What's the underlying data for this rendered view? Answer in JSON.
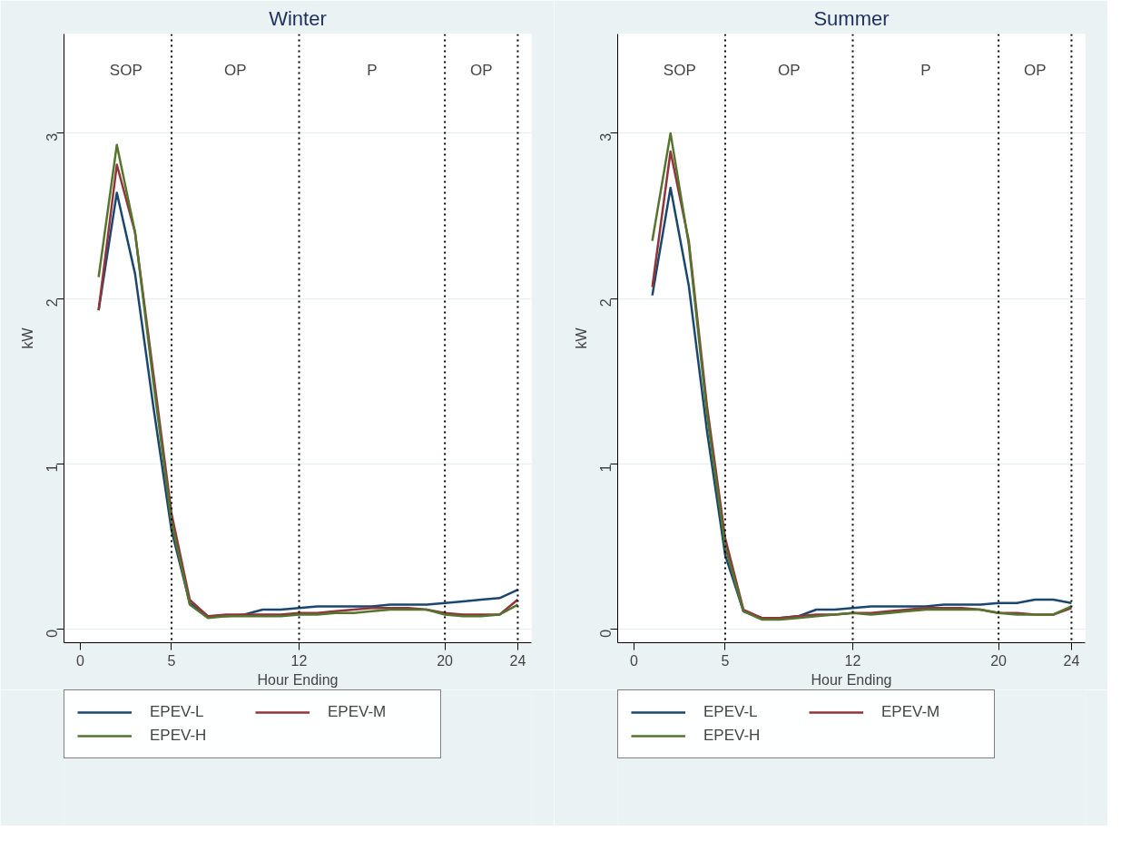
{
  "chart_data": [
    {
      "type": "line",
      "title": "Winter",
      "xlabel": "Hour Ending",
      "ylabel": "kW",
      "x": [
        1,
        2,
        3,
        4,
        5,
        6,
        7,
        8,
        9,
        10,
        11,
        12,
        13,
        14,
        15,
        16,
        17,
        18,
        19,
        20,
        21,
        22,
        23,
        24
      ],
      "series": [
        {
          "name": "EPEV-L",
          "color": "#1a476f",
          "values": [
            1.93,
            2.64,
            2.15,
            1.35,
            0.6,
            0.16,
            0.08,
            0.08,
            0.09,
            0.12,
            0.12,
            0.13,
            0.14,
            0.14,
            0.14,
            0.14,
            0.15,
            0.15,
            0.15,
            0.16,
            0.17,
            0.18,
            0.19,
            0.24
          ]
        },
        {
          "name": "EPEV-M",
          "color": "#90353b",
          "values": [
            1.93,
            2.81,
            2.4,
            1.55,
            0.7,
            0.18,
            0.08,
            0.09,
            0.09,
            0.09,
            0.09,
            0.1,
            0.1,
            0.11,
            0.12,
            0.13,
            0.13,
            0.13,
            0.12,
            0.1,
            0.09,
            0.09,
            0.09,
            0.18
          ]
        },
        {
          "name": "EPEV-H",
          "color": "#55752f",
          "values": [
            2.13,
            2.93,
            2.4,
            1.5,
            0.65,
            0.15,
            0.07,
            0.08,
            0.08,
            0.08,
            0.08,
            0.09,
            0.09,
            0.1,
            0.1,
            0.11,
            0.12,
            0.12,
            0.12,
            0.09,
            0.08,
            0.08,
            0.09,
            0.15
          ]
        }
      ],
      "xlim": [
        -0.9,
        24.75
      ],
      "ylim": [
        -0.08,
        3.6
      ],
      "xticks": [
        0,
        5,
        12,
        20,
        24
      ],
      "yticks": [
        0,
        1,
        2,
        3
      ],
      "grid": "y",
      "legend": "bottom",
      "ref_lines": [
        {
          "axis": "x",
          "value": 5,
          "color": "#000000",
          "line_style": "dotted"
        },
        {
          "axis": "x",
          "value": 12,
          "color": "#000000",
          "line_style": "dotted"
        },
        {
          "axis": "x",
          "value": 20,
          "color": "#000000",
          "line_style": "dotted"
        },
        {
          "axis": "x",
          "value": 24,
          "color": "#000000",
          "line_style": "dotted"
        }
      ],
      "annotations": [
        "SOP",
        "OP",
        "P",
        "OP"
      ]
    },
    {
      "type": "line",
      "title": "Summer",
      "xlabel": "Hour Ending",
      "ylabel": "kW",
      "x": [
        1,
        2,
        3,
        4,
        5,
        6,
        7,
        8,
        9,
        10,
        11,
        12,
        13,
        14,
        15,
        16,
        17,
        18,
        19,
        20,
        21,
        22,
        23,
        24
      ],
      "series": [
        {
          "name": "EPEV-L",
          "color": "#1a476f",
          "values": [
            2.02,
            2.67,
            2.08,
            1.2,
            0.45,
            0.11,
            0.07,
            0.07,
            0.08,
            0.12,
            0.12,
            0.13,
            0.14,
            0.14,
            0.14,
            0.14,
            0.15,
            0.15,
            0.15,
            0.16,
            0.16,
            0.18,
            0.18,
            0.16
          ]
        },
        {
          "name": "EPEV-M",
          "color": "#90353b",
          "values": [
            2.07,
            2.89,
            2.35,
            1.35,
            0.55,
            0.12,
            0.07,
            0.07,
            0.08,
            0.09,
            0.09,
            0.1,
            0.1,
            0.11,
            0.12,
            0.13,
            0.13,
            0.13,
            0.12,
            0.1,
            0.1,
            0.09,
            0.09,
            0.13
          ]
        },
        {
          "name": "EPEV-H",
          "color": "#55752f",
          "values": [
            2.35,
            3.0,
            2.33,
            1.3,
            0.5,
            0.11,
            0.06,
            0.06,
            0.07,
            0.08,
            0.09,
            0.1,
            0.09,
            0.1,
            0.11,
            0.12,
            0.12,
            0.12,
            0.12,
            0.1,
            0.09,
            0.09,
            0.09,
            0.14
          ]
        }
      ],
      "xlim": [
        -0.9,
        24.75
      ],
      "ylim": [
        -0.08,
        3.6
      ],
      "xticks": [
        0,
        5,
        12,
        20,
        24
      ],
      "yticks": [
        0,
        1,
        2,
        3
      ],
      "grid": "y",
      "legend": "bottom",
      "ref_lines": [
        {
          "axis": "x",
          "value": 5,
          "color": "#000000",
          "line_style": "dotted"
        },
        {
          "axis": "x",
          "value": 12,
          "color": "#000000",
          "line_style": "dotted"
        },
        {
          "axis": "x",
          "value": 20,
          "color": "#000000",
          "line_style": "dotted"
        },
        {
          "axis": "x",
          "value": 24,
          "color": "#000000",
          "line_style": "dotted"
        }
      ],
      "annotations": [
        "SOP",
        "OP",
        "P",
        "OP"
      ]
    }
  ]
}
